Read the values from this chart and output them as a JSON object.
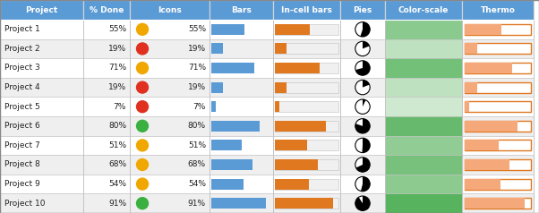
{
  "projects": [
    "Project 1",
    "Project 2",
    "Project 3",
    "Project 4",
    "Project 5",
    "Project 6",
    "Project 7",
    "Project 8",
    "Project 9",
    "Project 10"
  ],
  "pct": [
    55,
    19,
    71,
    19,
    7,
    80,
    51,
    68,
    54,
    91
  ],
  "icon_colors": [
    "#f0a800",
    "#e03020",
    "#f0a800",
    "#e03020",
    "#e03020",
    "#3ab040",
    "#f0a800",
    "#f0a800",
    "#f0a800",
    "#3ab040"
  ],
  "header_bg": "#5b9bd5",
  "header_text": "#ffffff",
  "row_bg_white": "#ffffff",
  "row_bg_gray": "#efefef",
  "bar_blue": "#5b9bd5",
  "bar_orange": "#e07820",
  "col_headers": [
    "Project",
    "% Done",
    "Icons",
    "Bars",
    "In-cell bars",
    "Pies",
    "Color-scale",
    "Thermo"
  ],
  "green_high": "#4aad52",
  "green_low": "#d9edd9",
  "thermo_fill": "#f5a87a",
  "thermo_border": "#e07820",
  "grid_color": "#c0c0c0",
  "fig_w": 6.02,
  "fig_h": 2.38,
  "dpi": 100
}
